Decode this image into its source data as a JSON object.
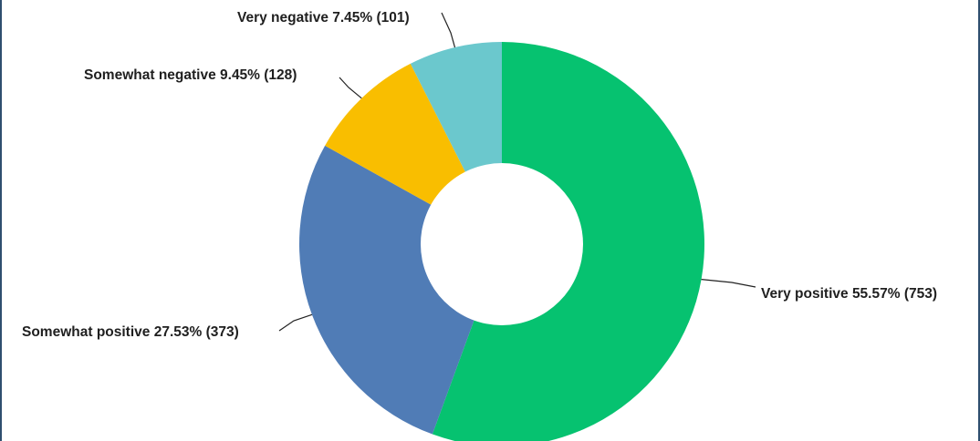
{
  "chart_data": {
    "type": "pie",
    "variant": "donut",
    "title": "",
    "legend": "none",
    "slices": [
      {
        "name": "Very positive",
        "percent": 55.57,
        "count": 753,
        "color": "#06c270",
        "label": "Very positive 55.57% (753)"
      },
      {
        "name": "Somewhat positive",
        "percent": 27.53,
        "count": 373,
        "color": "#507cb6",
        "label": "Somewhat positive 27.53% (373)"
      },
      {
        "name": "Somewhat negative",
        "percent": 9.45,
        "count": 128,
        "color": "#f9be00",
        "label": "Somewhat negative 9.45% (128)"
      },
      {
        "name": "Very negative",
        "percent": 7.45,
        "count": 101,
        "color": "#6bc8cd",
        "label": "Very negative 7.45% (101)"
      }
    ]
  },
  "colors": {
    "border": "#2f4f6f",
    "background": "#ffffff"
  }
}
